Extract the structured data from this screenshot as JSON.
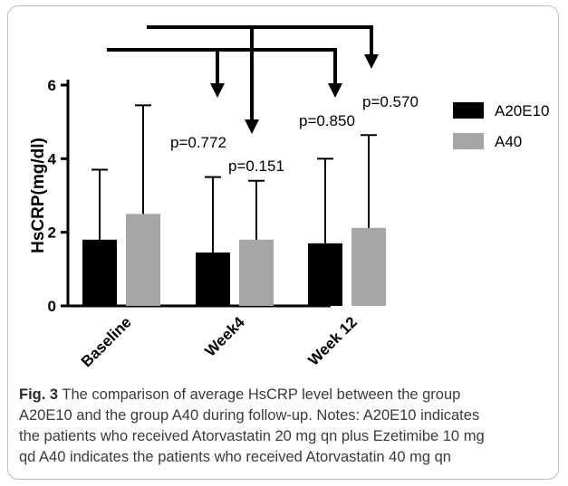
{
  "chart_data": {
    "type": "bar",
    "title": "",
    "xlabel": "",
    "ylabel": "HsCRP(mg/dl)",
    "ylim": [
      0,
      6
    ],
    "yticks": [
      "0",
      "2",
      "4",
      "6"
    ],
    "categories": [
      "Baseline",
      "Week4",
      "Week 12"
    ],
    "series": [
      {
        "name": "A20E10",
        "color": "#000000",
        "values": [
          1.8,
          1.45,
          1.7
        ],
        "error": [
          1.9,
          2.05,
          2.3
        ]
      },
      {
        "name": "A40",
        "color": "#a6a6a6",
        "values": [
          2.5,
          1.8,
          2.12
        ],
        "error": [
          2.95,
          1.6,
          2.52
        ]
      }
    ],
    "annotations": [
      "p=0.772",
      "p=0.151",
      "p=0.850",
      "p=0.570"
    ],
    "legend": "right",
    "grid": false
  },
  "caption": {
    "label": "Fig. 3",
    "lines": [
      "The comparison of average HsCRP level between the group",
      "A20E10 and the group A40 during follow-up. Notes: A20E10 indicates",
      "the patients who received Atorvastatin 20 mg qn plus Ezetimibe 10 mg",
      "qd A40 indicates the patients who received Atorvastatin 40 mg qn"
    ]
  }
}
